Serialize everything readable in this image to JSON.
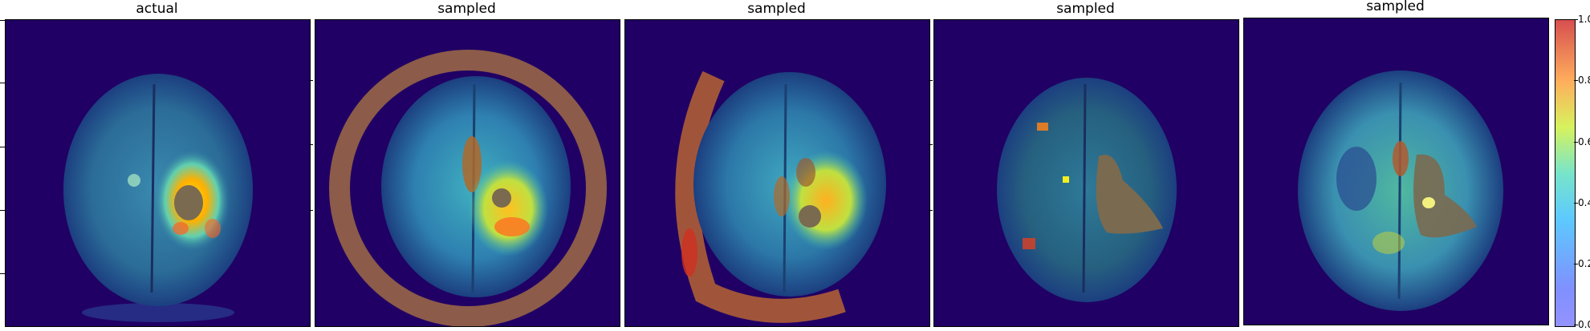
{
  "panels": [
    {
      "title": "actual"
    },
    {
      "title": "sampled"
    },
    {
      "title": "sampled"
    },
    {
      "title": "sampled"
    },
    {
      "title": "sampled"
    }
  ],
  "colorbar": {
    "colormap": "jet",
    "ticks": [
      "0.0",
      "0.2",
      "0.4",
      "0.6",
      "0.8",
      "1.0"
    ]
  },
  "colors": {
    "background": "#200064",
    "brain": "#2a5a8a",
    "lesion": "#7a6a50"
  }
}
